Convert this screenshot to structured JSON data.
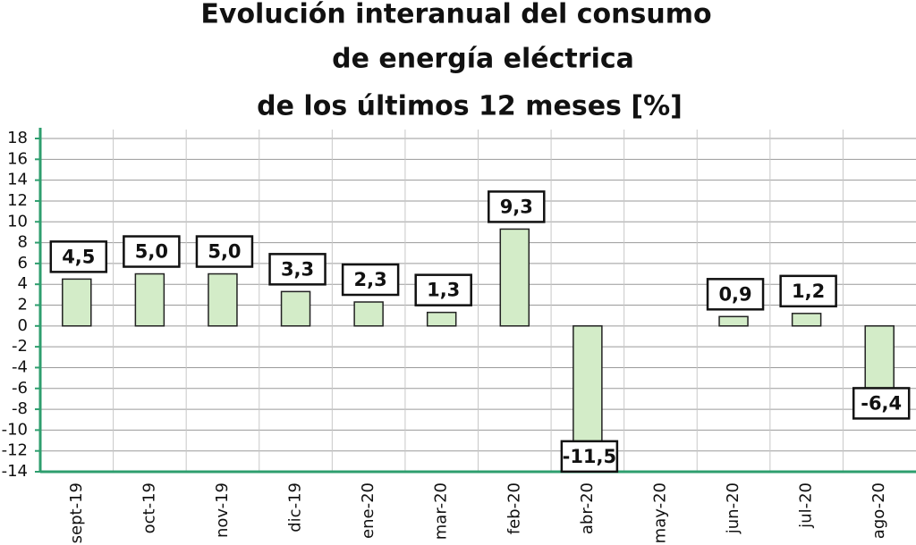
{
  "chart_data": {
    "type": "bar",
    "title": [
      "Evolución interanual del consumo",
      "de energía eléctrica",
      "de los últimos 12 meses [%]"
    ],
    "categories": [
      "sept-19",
      "oct-19",
      "nov-19",
      "dic-19",
      "ene-20",
      "mar-20",
      "feb-20",
      "abr-20",
      "may-20",
      "jun-20",
      "jul-20",
      "ago-20"
    ],
    "values": [
      4.5,
      5.0,
      5.0,
      3.3,
      2.3,
      1.3,
      9.3,
      -11.5,
      null,
      0.9,
      1.2,
      -6.4
    ],
    "value_labels": [
      "4,5",
      "5,0",
      "5,0",
      "3,3",
      "2,3",
      "1,3",
      "9,3",
      "-11,5",
      null,
      "0,9",
      "1,2",
      "-6,4"
    ],
    "color": "#d3ecc8",
    "ylim": [
      -14,
      18
    ],
    "yticks": [
      -14,
      -12,
      -10,
      -8,
      -6,
      -4,
      -2,
      0,
      2,
      4,
      6,
      8,
      10,
      12,
      14,
      16,
      18
    ],
    "grid": true
  }
}
